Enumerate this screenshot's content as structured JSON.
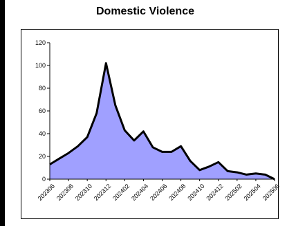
{
  "chart_data": {
    "type": "area",
    "title": "Domestic Violence",
    "xlabel": "",
    "ylabel": "",
    "ylim": [
      0,
      120
    ],
    "yticks": [
      0,
      20,
      40,
      60,
      80,
      100,
      120
    ],
    "xtick_labels": [
      "202306",
      "202308",
      "202310",
      "202312",
      "202402",
      "202404",
      "202406",
      "202408",
      "202410",
      "202412",
      "202502",
      "202504",
      "202506"
    ],
    "x": [
      "202306",
      "202307",
      "202308",
      "202309",
      "202310",
      "202311",
      "202312",
      "202401",
      "202402",
      "202403",
      "202404",
      "202405",
      "202406",
      "202407",
      "202408",
      "202409",
      "202410",
      "202411",
      "202412",
      "202501",
      "202502",
      "202503",
      "202504",
      "202505",
      "202506"
    ],
    "series": [
      {
        "values": [
          13,
          18,
          23,
          29,
          37,
          58,
          102,
          65,
          43,
          34,
          42,
          28,
          24,
          24,
          29,
          16,
          8,
          11,
          15,
          7,
          6,
          4,
          5,
          4,
          0
        ]
      }
    ],
    "fill_color": "#a0a0ff",
    "line_color": "#000000",
    "grid": false,
    "legend": "none"
  }
}
